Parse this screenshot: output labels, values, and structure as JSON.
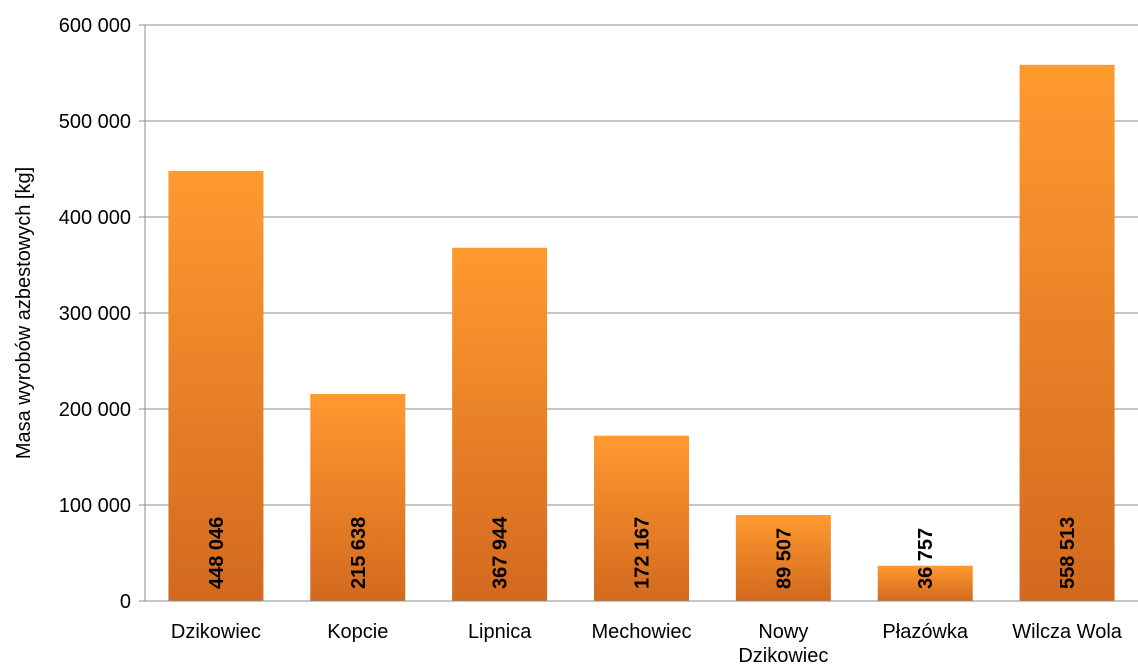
{
  "chart_data": {
    "type": "bar",
    "ylabel": "Masa wyrobów azbestowych [kg]",
    "xlabel": "",
    "ylim": [
      0,
      600000
    ],
    "yticks": [
      0,
      100000,
      200000,
      300000,
      400000,
      500000,
      600000
    ],
    "ytick_labels": [
      "0",
      "100 000",
      "200 000",
      "300 000",
      "400 000",
      "500 000",
      "600 000"
    ],
    "categories": [
      [
        "Dzikowiec"
      ],
      [
        "Kopcie"
      ],
      [
        "Lipnica"
      ],
      [
        "Mechowiec"
      ],
      [
        "Nowy",
        "Dzikowiec"
      ],
      [
        "Płazówka"
      ],
      [
        "Wilcza Wola"
      ]
    ],
    "values": [
      448046,
      215638,
      367944,
      172167,
      89507,
      36757,
      558513
    ],
    "data_labels": [
      "448 046",
      "215 638",
      "367 944",
      "172 167",
      "89 507",
      "36 757",
      "558 513"
    ],
    "grid": true,
    "legend": "none",
    "colors": {
      "bar_top": "#ff9a30",
      "bar_bottom": "#d2691e",
      "grid": "#8c8c8c",
      "axis": "#8c8c8c"
    }
  }
}
